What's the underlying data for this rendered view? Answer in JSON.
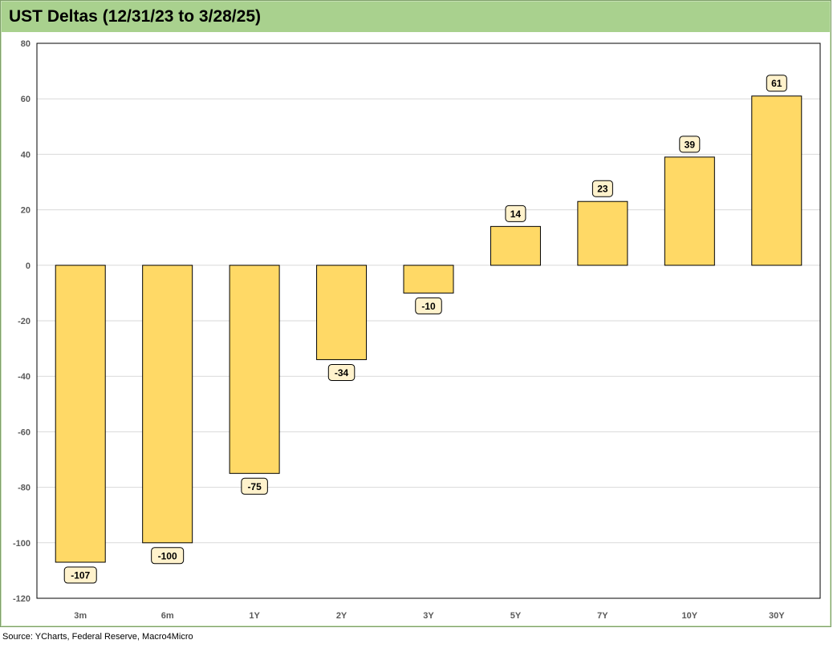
{
  "page": {
    "title": "UST Deltas (12/31/23 to 3/28/25)",
    "source": "Source: YCharts, Federal Reserve, Macro4Micro"
  },
  "colors": {
    "bar_fill": "#ffd966",
    "bar_stroke": "#000000",
    "label_fill": "#fff2cc",
    "frame": "#c6e0b4",
    "title_band": "#a9d18e",
    "grid": "#d9d9d9"
  },
  "chart_data": {
    "type": "bar",
    "title": "UST Deltas (12/31/23 to 3/28/25)",
    "categories": [
      "3m",
      "6m",
      "1Y",
      "2Y",
      "3Y",
      "5Y",
      "7Y",
      "10Y",
      "30Y"
    ],
    "values": [
      -107,
      -100,
      -75,
      -34,
      -10,
      14,
      23,
      39,
      61
    ],
    "data_labels": [
      "-107",
      "-100",
      "-75",
      "-34",
      "-10",
      "14",
      "23",
      "39",
      "61"
    ],
    "ylim": [
      -120,
      80
    ],
    "yticks": [
      80,
      60,
      40,
      20,
      0,
      -20,
      -40,
      -60,
      -80,
      -100,
      -120
    ],
    "xlabel": "",
    "ylabel": "",
    "grid": true,
    "legend": "none"
  }
}
